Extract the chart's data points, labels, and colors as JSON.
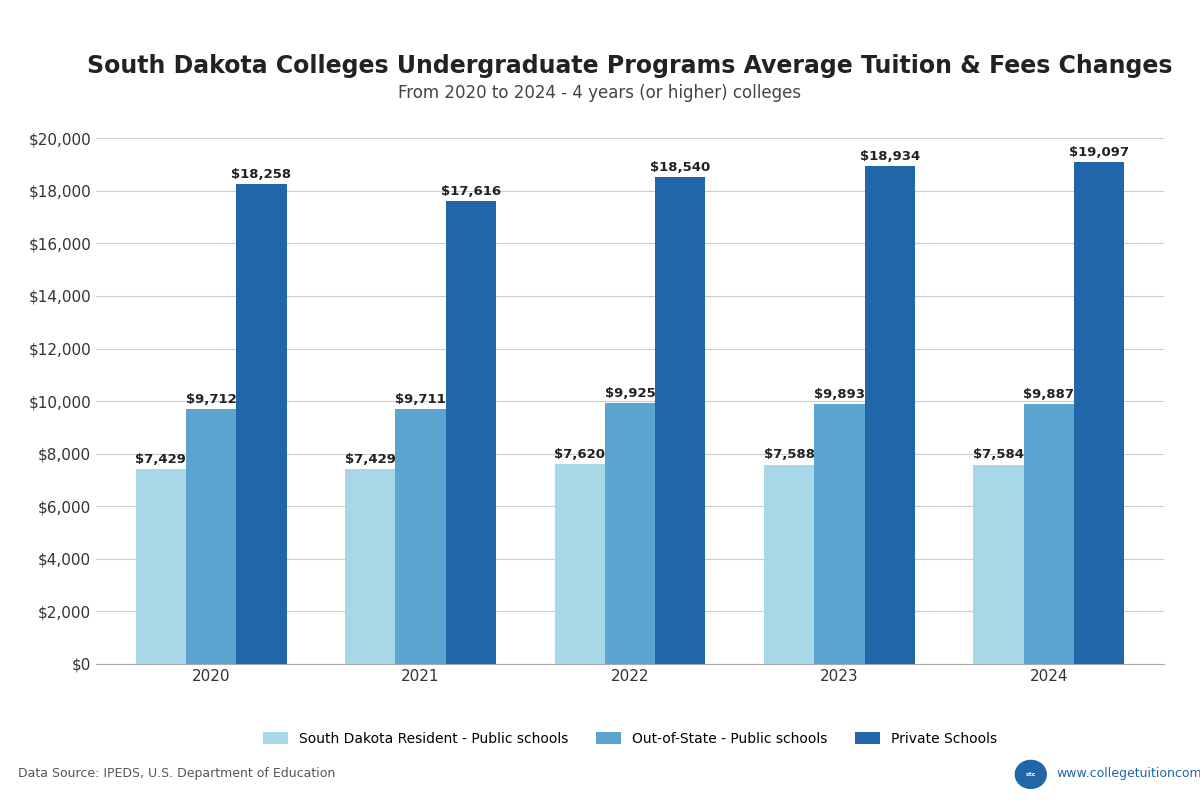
{
  "title": "South Dakota Colleges Undergraduate Programs Average Tuition & Fees Changes",
  "subtitle": "From 2020 to 2024 - 4 years (or higher) colleges",
  "years": [
    2020,
    2021,
    2022,
    2023,
    2024
  ],
  "series": [
    {
      "label": "South Dakota Resident - Public schools",
      "color": "#A8D8E8",
      "values": [
        7429,
        7429,
        7620,
        7588,
        7584
      ]
    },
    {
      "label": "Out-of-State - Public schools",
      "color": "#5BA4CF",
      "values": [
        9712,
        9711,
        9925,
        9893,
        9887
      ]
    },
    {
      "label": "Private Schools",
      "color": "#2166A8",
      "values": [
        18258,
        17616,
        18540,
        18934,
        19097
      ]
    }
  ],
  "ylim": [
    0,
    21000
  ],
  "yticks": [
    0,
    2000,
    4000,
    6000,
    8000,
    10000,
    12000,
    14000,
    16000,
    18000,
    20000
  ],
  "background_color": "#FFFFFF",
  "plot_bg_color": "#FFFFFF",
  "grid_color": "#CCCCCC",
  "data_source": "Data Source: IPEDS, U.S. Department of Education",
  "website": "www.collegetuitioncompare.com",
  "bar_width": 0.24,
  "title_fontsize": 17,
  "subtitle_fontsize": 12,
  "label_fontsize": 10,
  "tick_fontsize": 11,
  "annotation_fontsize": 9.5
}
